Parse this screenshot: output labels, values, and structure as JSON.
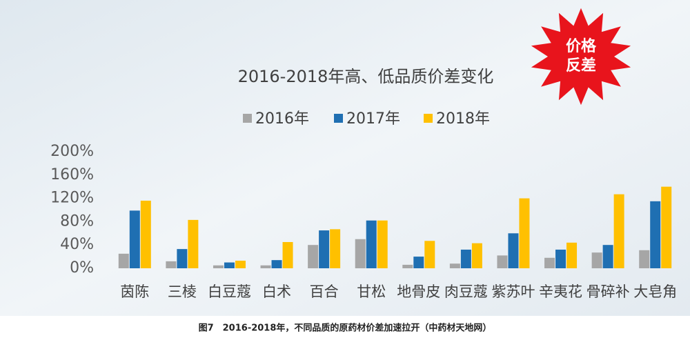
{
  "chart_data": {
    "type": "bar",
    "title": "2016-2018年高、低品质价差变化",
    "categories": [
      "茵陈",
      "三棱",
      "白豆蔻",
      "白术",
      "百合",
      "甘松",
      "地骨皮",
      "肉豆蔻",
      "紫苏叶",
      "辛夷花",
      "骨碎补",
      "大皂角"
    ],
    "series": [
      {
        "name": "2016年",
        "color": "#a6a6a6",
        "values": [
          25,
          12,
          5,
          5,
          40,
          50,
          6,
          8,
          22,
          18,
          27,
          31
        ]
      },
      {
        "name": "2017年",
        "color": "#1f6fb2",
        "values": [
          99,
          33,
          10,
          14,
          65,
          82,
          20,
          32,
          60,
          32,
          40,
          115
        ]
      },
      {
        "name": "2018年",
        "color": "#ffc000",
        "values": [
          116,
          83,
          13,
          45,
          67,
          82,
          47,
          43,
          120,
          44,
          127,
          140
        ]
      }
    ],
    "ylim": [
      0,
      200
    ],
    "yticks": [
      {
        "value": 0,
        "label": "0%"
      },
      {
        "value": 40,
        "label": "40%"
      },
      {
        "value": 80,
        "label": "80%"
      },
      {
        "value": 120,
        "label": "120%"
      },
      {
        "value": 160,
        "label": "160%"
      },
      {
        "value": 200,
        "label": "200%"
      }
    ],
    "grid": false
  },
  "badge": [
    "价格",
    "反差"
  ],
  "caption": "图7　2016-2018年，不同品质的原药材价差加速拉开（中药材天地网）"
}
